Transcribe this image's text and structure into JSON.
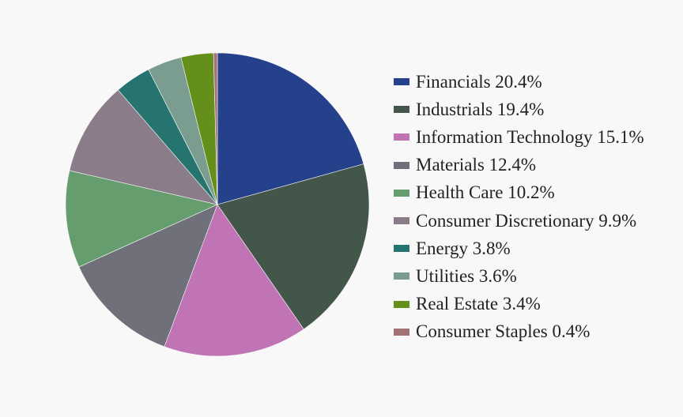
{
  "chart_data": {
    "type": "pie",
    "slices": [
      {
        "label": "Financials",
        "value": 20.4,
        "display": "20.4%",
        "color": "#26418b"
      },
      {
        "label": "Industrials",
        "value": 19.4,
        "display": "19.4%",
        "color": "#43564a"
      },
      {
        "label": "Information Technology",
        "value": 15.1,
        "display": "15.1%",
        "color": "#c074b5"
      },
      {
        "label": "Materials",
        "value": 12.4,
        "display": "12.4%",
        "color": "#6f7079"
      },
      {
        "label": "Health Care",
        "value": 10.2,
        "display": "10.2%",
        "color": "#659d6e"
      },
      {
        "label": "Consumer Discretionary",
        "value": 9.9,
        "display": "9.9%",
        "color": "#8b7c89"
      },
      {
        "label": "Energy",
        "value": 3.8,
        "display": "3.8%",
        "color": "#267470"
      },
      {
        "label": "Utilities",
        "value": 3.6,
        "display": "3.6%",
        "color": "#7a9d90"
      },
      {
        "label": "Real Estate",
        "value": 3.4,
        "display": "3.4%",
        "color": "#648f1b"
      },
      {
        "label": "Consumer Staples",
        "value": 0.4,
        "display": "0.4%",
        "color": "#a37373"
      }
    ],
    "start_angle": "12 o'clock",
    "direction": "clockwise",
    "legend_position": "right"
  }
}
